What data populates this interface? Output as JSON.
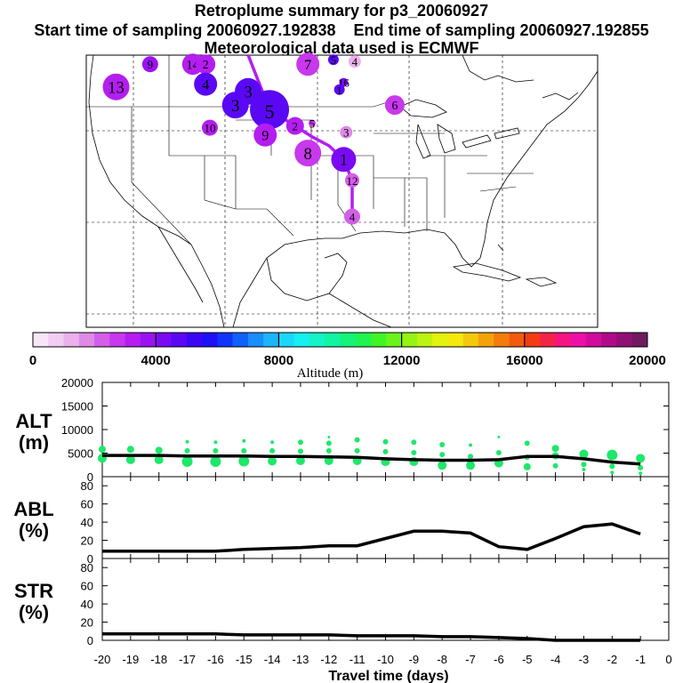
{
  "header": {
    "title": "Retroplume summary for p3_20060927",
    "start_label": "Start time of sampling 20060927.192838",
    "end_label": "End time of sampling 20060927.192855",
    "met_label": "Meteorological data used is ECMWF"
  },
  "chart_data": [
    {
      "type": "scatter",
      "title": "Retroplume trajectory map",
      "description_label": "map",
      "points": [
        {
          "label": "9",
          "lon": -117.5,
          "lat": 49.0,
          "alt": 3600,
          "size": 9
        },
        {
          "label": "14",
          "lon": -112.5,
          "lat": 49.0,
          "alt": 3200,
          "size": 12
        },
        {
          "label": "2",
          "lon": -111.0,
          "lat": 49.0,
          "alt": 3100,
          "size": 11
        },
        {
          "label": "7",
          "lon": -99.0,
          "lat": 49.0,
          "alt": 2700,
          "size": 13
        },
        {
          "label": "5",
          "lon": -96.0,
          "lat": 49.5,
          "alt": 4500,
          "size": 6
        },
        {
          "label": "4",
          "lon": -93.5,
          "lat": 49.3,
          "alt": 1200,
          "size": 7
        },
        {
          "label": "13",
          "lon": -121.5,
          "lat": 46.5,
          "alt": 3400,
          "size": 15
        },
        {
          "label": "4",
          "lon": -111.0,
          "lat": 46.8,
          "alt": 4600,
          "size": 13
        },
        {
          "label": "16",
          "lon": -94.8,
          "lat": 47.0,
          "alt": 4300,
          "size": 5
        },
        {
          "label": "1",
          "lon": -95.3,
          "lat": 46.2,
          "alt": 4500,
          "size": 6
        },
        {
          "label": "6",
          "lon": -88.8,
          "lat": 44.5,
          "alt": 2600,
          "size": 11
        },
        {
          "label": "3",
          "lon": -106.0,
          "lat": 46.0,
          "alt": 4600,
          "size": 15
        },
        {
          "label": "3",
          "lon": -107.5,
          "lat": 44.5,
          "alt": 4600,
          "size": 15
        },
        {
          "label": "5",
          "lon": -103.5,
          "lat": 44.0,
          "alt": 4600,
          "size": 22
        },
        {
          "label": "10",
          "lon": -110.5,
          "lat": 42.0,
          "alt": 3400,
          "size": 9
        },
        {
          "label": "9",
          "lon": -104.0,
          "lat": 41.2,
          "alt": 3300,
          "size": 13
        },
        {
          "label": "2",
          "lon": -100.5,
          "lat": 42.2,
          "alt": 3300,
          "size": 10
        },
        {
          "label": "5",
          "lon": -98.5,
          "lat": 42.5,
          "alt": 2800,
          "size": 4
        },
        {
          "label": "3",
          "lon": -94.5,
          "lat": 41.5,
          "alt": 1700,
          "size": 7
        },
        {
          "label": "8",
          "lon": -99.0,
          "lat": 39.2,
          "alt": 2900,
          "size": 15
        },
        {
          "label": "1",
          "lon": -94.8,
          "lat": 38.5,
          "alt": 4300,
          "size": 14
        },
        {
          "label": "12",
          "lon": -93.8,
          "lat": 36.2,
          "alt": 2300,
          "size": 8
        },
        {
          "label": "4",
          "lon": -93.8,
          "lat": 32.2,
          "alt": 2100,
          "size": 9
        }
      ],
      "track": {
        "lons": [
          -106.0,
          -103.5,
          -100.5,
          -98.5,
          -96.5,
          -94.8,
          -93.8,
          -93.8
        ],
        "lats": [
          50.5,
          44.0,
          42.2,
          41.0,
          40.0,
          38.5,
          36.2,
          32.2
        ],
        "alt": 3200
      },
      "map_extent": {
        "lon": [
          -125,
          -65
        ],
        "lat": [
          20,
          50
        ]
      }
    },
    {
      "type": "colorbar",
      "xlabel": "Altitude (m)",
      "range": [
        0,
        20000
      ],
      "tick_labels": [
        "0",
        "4000",
        "8000",
        "12000",
        "16000",
        "20000"
      ],
      "colors": [
        "#f7e6f7",
        "#f3ccf3",
        "#ecb0ec",
        "#e08ae8",
        "#d45ee8",
        "#c838ec",
        "#b41ef0",
        "#9b12f0",
        "#7a0af2",
        "#5a08f4",
        "#3a06f6",
        "#1e10f8",
        "#1034fa",
        "#1060fa",
        "#1a8cfb",
        "#1cb4fb",
        "#1ad8fb",
        "#16f0f0",
        "#14f4c8",
        "#12f4a0",
        "#14f47a",
        "#20f450",
        "#40f426",
        "#6af41a",
        "#94f414",
        "#bcf410",
        "#e2f40e",
        "#f4e80c",
        "#f4c80c",
        "#f4a20c",
        "#f47c0c",
        "#f45a0e",
        "#f43c14",
        "#f42448",
        "#f41484",
        "#ec10a8",
        "#d00c9e",
        "#b00a8a",
        "#901074",
        "#701a62"
      ]
    },
    {
      "type": "scatter",
      "title": "ALT",
      "ylabel": "ALT (m)",
      "ylabel_top": "ALT",
      "ylabel_bottom": "(m)",
      "ylim": [
        0,
        20000
      ],
      "xlim": [
        -20,
        0
      ],
      "y_tick_labels": [
        "0",
        "5000",
        "10000",
        "15000",
        "20000"
      ],
      "mean_line": {
        "x": [
          -20,
          -19,
          -18,
          -17,
          -16,
          -15,
          -14,
          -13,
          -12,
          -11,
          -10,
          -9,
          -8,
          -7,
          -6,
          -5,
          -4,
          -3,
          -2,
          -1
        ],
        "y": [
          4500,
          4500,
          4500,
          4400,
          4400,
          4400,
          4300,
          4300,
          4200,
          4100,
          3800,
          3600,
          3500,
          3500,
          3600,
          4300,
          4300,
          3800,
          3100,
          2700
        ]
      },
      "dots": [
        {
          "x": -20,
          "y": 5800,
          "s": 4
        },
        {
          "x": -20,
          "y": 3900,
          "s": 5
        },
        {
          "x": -19,
          "y": 5800,
          "s": 4
        },
        {
          "x": -19,
          "y": 3600,
          "s": 5
        },
        {
          "x": -18,
          "y": 5600,
          "s": 4
        },
        {
          "x": -18,
          "y": 3600,
          "s": 5
        },
        {
          "x": -17,
          "y": 7400,
          "s": 2
        },
        {
          "x": -17,
          "y": 5500,
          "s": 3
        },
        {
          "x": -17,
          "y": 3200,
          "s": 6
        },
        {
          "x": -16,
          "y": 7300,
          "s": 2
        },
        {
          "x": -16,
          "y": 5500,
          "s": 3
        },
        {
          "x": -16,
          "y": 3200,
          "s": 6
        },
        {
          "x": -15,
          "y": 7600,
          "s": 2
        },
        {
          "x": -15,
          "y": 5500,
          "s": 3
        },
        {
          "x": -15,
          "y": 3300,
          "s": 6
        },
        {
          "x": -14,
          "y": 7300,
          "s": 2
        },
        {
          "x": -14,
          "y": 5500,
          "s": 3
        },
        {
          "x": -14,
          "y": 3300,
          "s": 5
        },
        {
          "x": -13,
          "y": 7300,
          "s": 3
        },
        {
          "x": -13,
          "y": 5400,
          "s": 3
        },
        {
          "x": -13,
          "y": 3400,
          "s": 5
        },
        {
          "x": -12,
          "y": 8400,
          "s": 1.5
        },
        {
          "x": -12,
          "y": 7100,
          "s": 3
        },
        {
          "x": -12,
          "y": 5500,
          "s": 3
        },
        {
          "x": -12,
          "y": 3400,
          "s": 5
        },
        {
          "x": -11,
          "y": 7800,
          "s": 3
        },
        {
          "x": -11,
          "y": 5500,
          "s": 3
        },
        {
          "x": -11,
          "y": 3400,
          "s": 5
        },
        {
          "x": -10,
          "y": 7400,
          "s": 3
        },
        {
          "x": -10,
          "y": 5300,
          "s": 3
        },
        {
          "x": -10,
          "y": 3200,
          "s": 5
        },
        {
          "x": -9,
          "y": 7300,
          "s": 3
        },
        {
          "x": -9,
          "y": 5100,
          "s": 3
        },
        {
          "x": -9,
          "y": 3200,
          "s": 5
        },
        {
          "x": -8,
          "y": 6800,
          "s": 3
        },
        {
          "x": -8,
          "y": 4700,
          "s": 3
        },
        {
          "x": -8,
          "y": 2400,
          "s": 5
        },
        {
          "x": -7,
          "y": 6700,
          "s": 2
        },
        {
          "x": -7,
          "y": 4300,
          "s": 3
        },
        {
          "x": -7,
          "y": 2400,
          "s": 5
        },
        {
          "x": -6,
          "y": 8400,
          "s": 1.5
        },
        {
          "x": -6,
          "y": 5100,
          "s": 3
        },
        {
          "x": -6,
          "y": 2900,
          "s": 5
        },
        {
          "x": -5,
          "y": 7100,
          "s": 3
        },
        {
          "x": -5,
          "y": 4100,
          "s": 3
        },
        {
          "x": -5,
          "y": 2100,
          "s": 4
        },
        {
          "x": -4,
          "y": 6000,
          "s": 4
        },
        {
          "x": -4,
          "y": 4400,
          "s": 4
        },
        {
          "x": -4,
          "y": 2300,
          "s": 3
        },
        {
          "x": -3,
          "y": 4800,
          "s": 5
        },
        {
          "x": -3,
          "y": 2600,
          "s": 3
        },
        {
          "x": -3,
          "y": 1500,
          "s": 2
        },
        {
          "x": -2,
          "y": 4600,
          "s": 6
        },
        {
          "x": -2,
          "y": 2200,
          "s": 3
        },
        {
          "x": -2,
          "y": 900,
          "s": 2
        },
        {
          "x": -1,
          "y": 3900,
          "s": 5
        },
        {
          "x": -1,
          "y": 1900,
          "s": 3
        },
        {
          "x": -1,
          "y": 700,
          "s": 2
        }
      ]
    },
    {
      "type": "line",
      "title": "ABL",
      "ylabel": "ABL (%)",
      "ylabel_top": "ABL",
      "ylabel_bottom": "(%)",
      "ylim": [
        0,
        90
      ],
      "xlim": [
        -20,
        0
      ],
      "y_tick_labels": [
        "0",
        "20",
        "40",
        "60",
        "80"
      ],
      "x": [
        -20,
        -19,
        -18,
        -17,
        -16,
        -15,
        -14,
        -13,
        -12,
        -11,
        -10,
        -9,
        -8,
        -7,
        -6,
        -5,
        -4,
        -3,
        -2,
        -1
      ],
      "y": [
        8,
        8,
        8,
        8,
        8,
        10,
        11,
        12,
        14,
        14,
        22,
        30,
        30,
        28,
        13,
        10,
        22,
        35,
        38,
        27
      ]
    },
    {
      "type": "line",
      "title": "STR",
      "ylabel": "STR (%)",
      "ylabel_top": "STR",
      "ylabel_bottom": "(%)",
      "ylim": [
        0,
        90
      ],
      "xlim": [
        -20,
        0
      ],
      "y_tick_labels": [
        "0",
        "20",
        "40",
        "60",
        "80"
      ],
      "xlabel": "Travel time (days)",
      "x_tick_labels": [
        "-20",
        "-19",
        "-18",
        "-17",
        "-16",
        "-15",
        "-14",
        "-13",
        "-12",
        "-11",
        "-10",
        "-9",
        "-8",
        "-7",
        "-6",
        "-5",
        "-4",
        "-3",
        "-2",
        "-1",
        "0"
      ],
      "x": [
        -20,
        -19,
        -18,
        -17,
        -16,
        -15,
        -14,
        -13,
        -12,
        -11,
        -10,
        -9,
        -8,
        -7,
        -6,
        -5,
        -4,
        -3,
        -2,
        -1
      ],
      "y": [
        7,
        7,
        7,
        7,
        7,
        6,
        6,
        6,
        6,
        5,
        5,
        5,
        4,
        4,
        3,
        2,
        0,
        0,
        0,
        0
      ]
    }
  ]
}
